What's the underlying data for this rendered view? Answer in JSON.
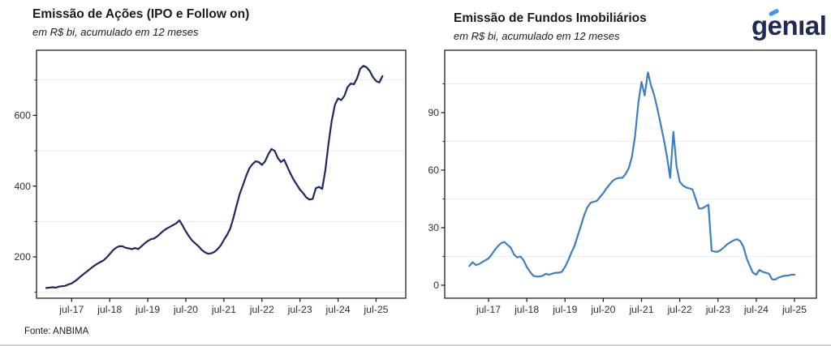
{
  "logo": {
    "text": "genıal",
    "color": "#1f2a56",
    "accent_color": "#3f97f6"
  },
  "source": {
    "text": "Fonte: ANBIMA"
  },
  "chart_data": [
    {
      "type": "line",
      "title": "Emissão de Ações (IPO e Follow on)",
      "subtitle": "em R$ bi, acumulado em 12 meses",
      "line_color": "#1b2a64",
      "legend": "none",
      "grid": "minor-horizontal-only",
      "xlabel": "",
      "ylabel": "",
      "x_tick_labels": [
        "jul-17",
        "jul-18",
        "jul-19",
        "jul-20",
        "jul-21",
        "jul-22",
        "jul-23",
        "jul-24",
        "jul-25"
      ],
      "y_tick_labels": [
        "200",
        "400",
        "600"
      ],
      "y_tick_values": [
        200,
        400,
        600
      ],
      "y_minor_values": [
        100,
        300,
        500,
        700
      ],
      "ylim": [
        83,
        784
      ],
      "start_offset_months": -8,
      "monthly_values": [
        112,
        113,
        114,
        113,
        116,
        117,
        118,
        122,
        125,
        131,
        138,
        146,
        153,
        160,
        167,
        174,
        180,
        185,
        190,
        198,
        208,
        218,
        226,
        230,
        230,
        226,
        224,
        222,
        225,
        222,
        230,
        238,
        245,
        250,
        252,
        258,
        266,
        274,
        280,
        285,
        290,
        295,
        303,
        288,
        272,
        258,
        246,
        238,
        230,
        220,
        213,
        209,
        210,
        214,
        222,
        232,
        248,
        262,
        280,
        310,
        345,
        378,
        402,
        428,
        450,
        462,
        470,
        468,
        460,
        470,
        490,
        505,
        500,
        480,
        468,
        475,
        455,
        435,
        418,
        404,
        390,
        380,
        368,
        362,
        364,
        394,
        398,
        392,
        445,
        520,
        585,
        630,
        648,
        643,
        655,
        680,
        690,
        688,
        705,
        732,
        740,
        736,
        725,
        708,
        697,
        693,
        711
      ]
    },
    {
      "type": "line",
      "title": "Emissão de Fundos Imobiliários",
      "subtitle": "em R$ bi, acumulado em 12 meses",
      "line_color": "#3d7fc1",
      "legend": "none",
      "grid": "minor-horizontal-only",
      "xlabel": "",
      "ylabel": "",
      "x_tick_labels": [
        "jul-17",
        "jul-18",
        "jul-19",
        "jul-20",
        "jul-21",
        "jul-22",
        "jul-23",
        "jul-24",
        "jul-25"
      ],
      "y_tick_labels": [
        "0",
        "30",
        "60",
        "90"
      ],
      "y_tick_values": [
        0,
        30,
        60,
        90
      ],
      "y_minor_values": [
        15,
        45,
        75,
        105
      ],
      "ylim": [
        -7,
        122
      ],
      "start_offset_months": -6,
      "monthly_values": [
        10,
        12,
        10.5,
        11,
        12,
        13,
        14,
        16,
        18.5,
        20.5,
        22,
        22.5,
        21,
        19.5,
        16,
        14.5,
        15,
        13,
        9.5,
        7,
        5,
        4.5,
        4.5,
        5,
        6,
        5.5,
        6,
        6.5,
        6.5,
        7,
        9.5,
        13,
        17,
        20.5,
        26,
        31,
        36.5,
        40.5,
        43,
        43.5,
        44,
        46,
        48,
        50.5,
        52.5,
        54.5,
        55.5,
        56,
        56,
        58,
        61,
        67,
        78,
        95,
        106,
        99,
        111,
        104,
        99,
        92,
        84,
        76,
        67,
        56,
        80,
        62,
        54,
        52,
        51,
        50.5,
        50,
        45,
        40,
        40,
        41,
        42,
        18,
        17.5,
        17.5,
        18.5,
        20,
        21.5,
        22.5,
        23.5,
        24,
        23,
        20,
        14,
        10,
        6.5,
        5.5,
        8,
        7,
        6.5,
        6,
        3,
        3,
        4,
        4.5,
        5,
        5,
        5.5,
        5.5
      ]
    }
  ]
}
